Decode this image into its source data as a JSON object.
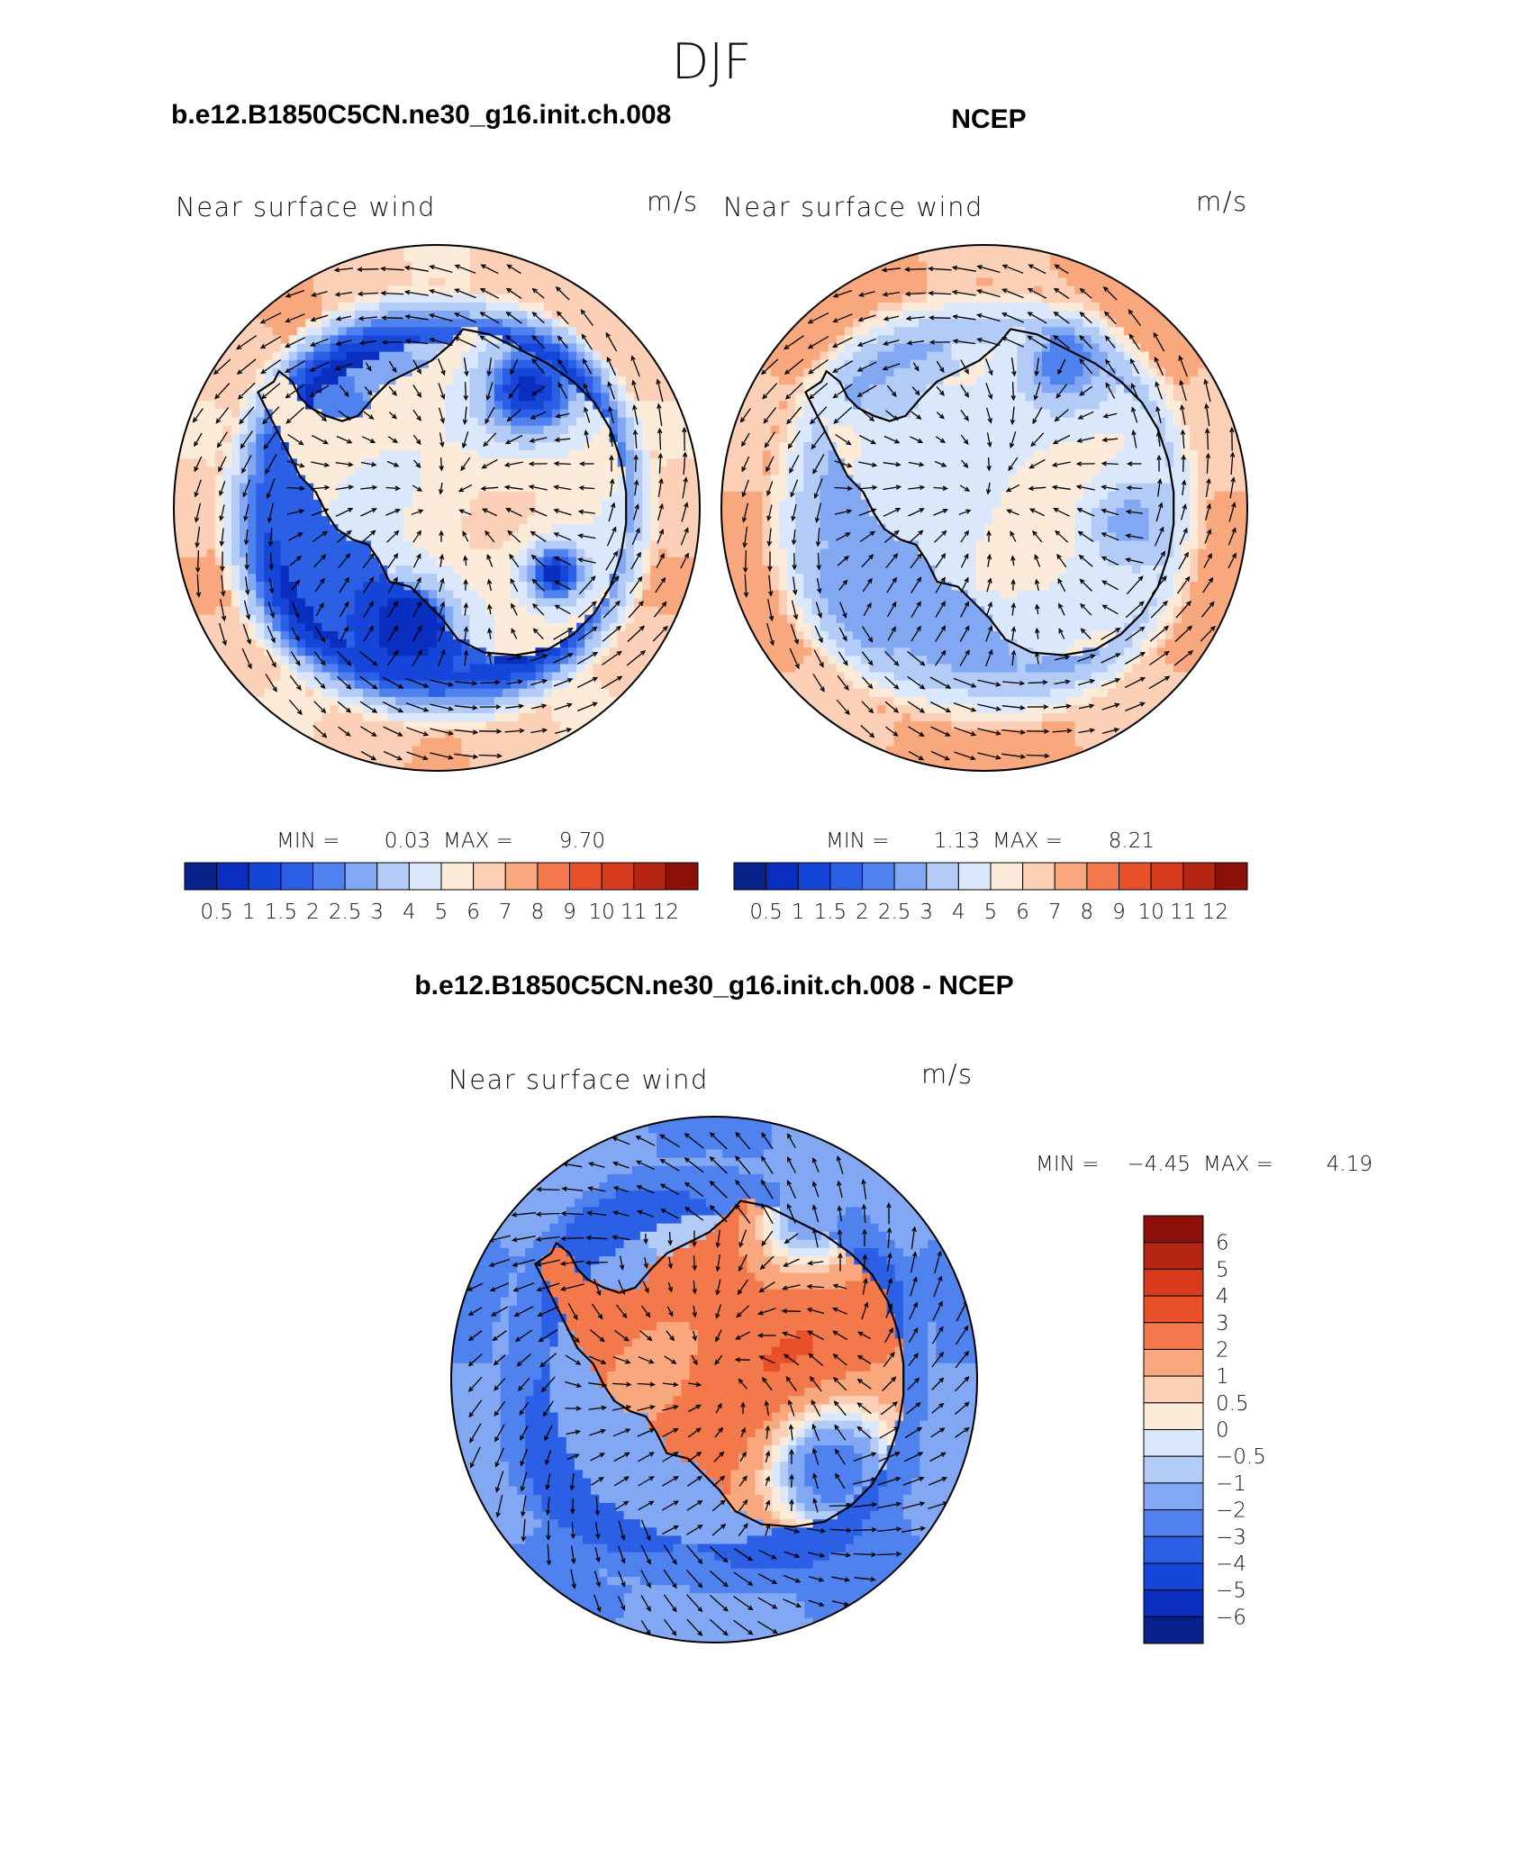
{
  "page_title": "DJF",
  "colors": {
    "wind_scale": [
      "#08208a",
      "#0a2ec0",
      "#1646d9",
      "#2a5fe6",
      "#4f82ee",
      "#82a8f3",
      "#b3cbf7",
      "#dbe8fb",
      "#fdebd9",
      "#fcd0b6",
      "#f9a87e",
      "#f3784b",
      "#e8502a",
      "#d83a1c",
      "#b52511",
      "#8c0f0a"
    ],
    "diff_scale": [
      "#8c0f0a",
      "#b52511",
      "#d83a1c",
      "#e8502a",
      "#f3784b",
      "#f9a87e",
      "#fcd0b6",
      "#fdebd9",
      "#dbe8fb",
      "#b3cbf7",
      "#82a8f3",
      "#4f82ee",
      "#2a5fe6",
      "#1646d9",
      "#0a2ec0",
      "#08208a"
    ],
    "coast": "#000000",
    "arrow": "#000000"
  },
  "panels": [
    {
      "id": "model",
      "heading": "b.e12.B1850C5CN.ne30_g16.init.ch.008",
      "left_label": "Near surface wind",
      "right_label": "m/s",
      "stats": {
        "min_label": "MIN =",
        "min": "0.03",
        "max_label": "MAX =",
        "max": "9.70"
      },
      "colorbar": {
        "labels": [
          "0.5",
          "1",
          "1.5",
          "2",
          "2.5",
          "3",
          "4",
          "5",
          "6",
          "7",
          "8",
          "9",
          "10",
          "11",
          "12"
        ]
      },
      "field": {
        "outer": 6.5,
        "ring": 1.2,
        "inner": 2.5,
        "land": 5.5,
        "blobs": [
          [
            0.35,
            -0.45,
            0.22,
            0.8
          ],
          [
            -0.1,
            0.45,
            0.2,
            0.6
          ],
          [
            0.45,
            0.25,
            0.12,
            0.6
          ]
        ]
      }
    },
    {
      "id": "ncep",
      "heading": "NCEP",
      "left_label": "Near surface wind",
      "right_label": "m/s",
      "stats": {
        "min_label": "MIN =",
        "min": "1.13",
        "max_label": "MAX =",
        "max": "8.21"
      },
      "colorbar": {
        "labels": [
          "0.5",
          "1",
          "1.5",
          "2",
          "2.5",
          "3",
          "4",
          "5",
          "6",
          "7",
          "8",
          "9",
          "10",
          "11",
          "12"
        ]
      },
      "field": {
        "outer": 7.2,
        "ring": 3.0,
        "inner": 3.5,
        "land": 4.8,
        "blobs": [
          [
            0.3,
            -0.55,
            0.18,
            2.0
          ],
          [
            0.55,
            0.05,
            0.15,
            2.5
          ]
        ]
      }
    },
    {
      "id": "diff",
      "heading": "b.e12.B1850C5CN.ne30_g16.init.ch.008 - NCEP",
      "left_label": "Near surface wind",
      "right_label": "m/s",
      "stats": {
        "min_label": "MIN =",
        "min": "−4.45",
        "max_label": "MAX =",
        "max": "4.19"
      },
      "colorbar": {
        "labels": [
          "6",
          "5",
          "4",
          "3",
          "2",
          "1",
          "0.5",
          "0",
          "−0.5",
          "−1",
          "−2",
          "−3",
          "−4",
          "−5",
          "−6"
        ]
      },
      "field": {
        "outer": -1.8,
        "ring": -3.5,
        "inner": -1.2,
        "land": 2.5,
        "blobs": [
          [
            0.45,
            0.35,
            0.25,
            -3.0
          ],
          [
            0.35,
            -0.6,
            0.2,
            -1.5
          ]
        ]
      }
    }
  ]
}
